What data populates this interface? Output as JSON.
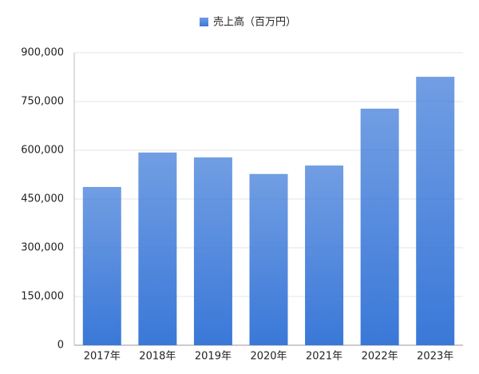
{
  "chart_data": {
    "type": "bar",
    "legend": "売上高（百万円）",
    "categories": [
      "2017年",
      "2018年",
      "2019年",
      "2020年",
      "2021年",
      "2022年",
      "2023年"
    ],
    "values": [
      487000,
      593000,
      578000,
      527000,
      553000,
      728000,
      826000
    ],
    "color": "#3a78d8",
    "ylim": [
      0,
      900000
    ],
    "yticks": [
      0,
      {
        "value": 150000,
        "label": "150,000"
      },
      {
        "value": 300000,
        "label": "300,000"
      },
      {
        "value": 450000,
        "label": "450,000"
      },
      {
        "value": 600000,
        "label": "600,000"
      },
      {
        "value": 750000,
        "label": "750,000"
      },
      {
        "value": 900000,
        "label": "900,000"
      }
    ],
    "grid": true
  }
}
